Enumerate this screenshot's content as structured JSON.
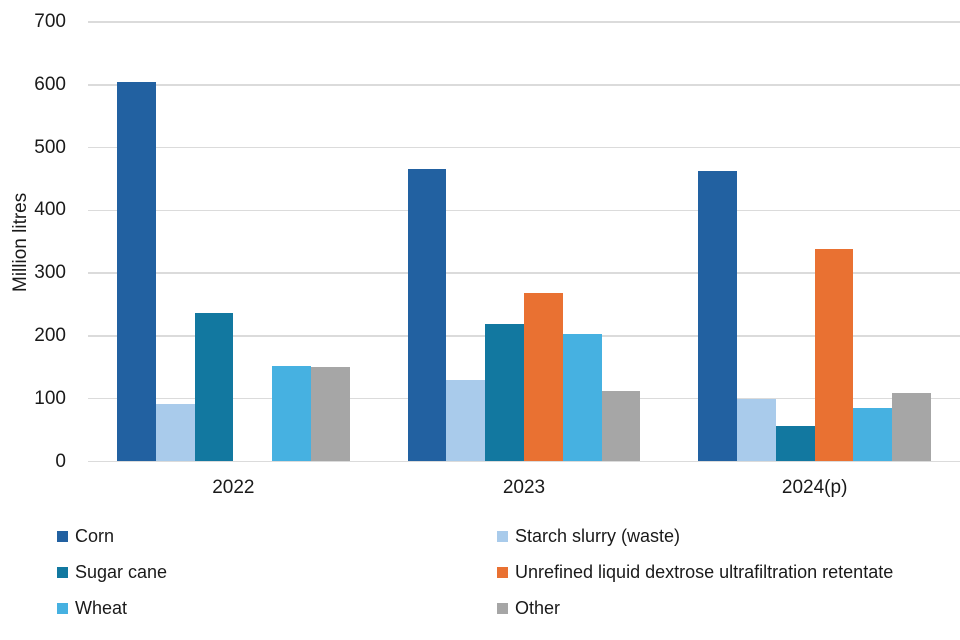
{
  "chart_data": {
    "type": "bar",
    "title": "",
    "ylabel": "Million litres",
    "xlabel": "",
    "categories": [
      "2022",
      "2023",
      "2024(p)"
    ],
    "series": [
      {
        "name": "Corn",
        "color": "#2261A1",
        "values": [
          605,
          466,
          463
        ]
      },
      {
        "name": "Starch slurry (waste)",
        "color": "#A9CBEB",
        "values": [
          92,
          130,
          100
        ]
      },
      {
        "name": "Sugar cane",
        "color": "#1278A0",
        "values": [
          236,
          219,
          56
        ]
      },
      {
        "name": "Unrefined liquid dextrose ultrafiltration retentate",
        "color": "#E97132",
        "values": [
          0,
          268,
          338
        ]
      },
      {
        "name": "Wheat",
        "color": "#46B1E1",
        "values": [
          152,
          203,
          86
        ]
      },
      {
        "name": "Other",
        "color": "#A6A6A6",
        "values": [
          150,
          113,
          109
        ]
      }
    ],
    "y_axis": {
      "min": 0,
      "max": 700,
      "step": 100,
      "tick_labels": [
        "0",
        "100",
        "200",
        "300",
        "400",
        "500",
        "600",
        "700"
      ]
    },
    "grid": true,
    "grid_color": "#DBDBDB",
    "text_color": "#1a1a1a",
    "legend_position": "bottom"
  }
}
